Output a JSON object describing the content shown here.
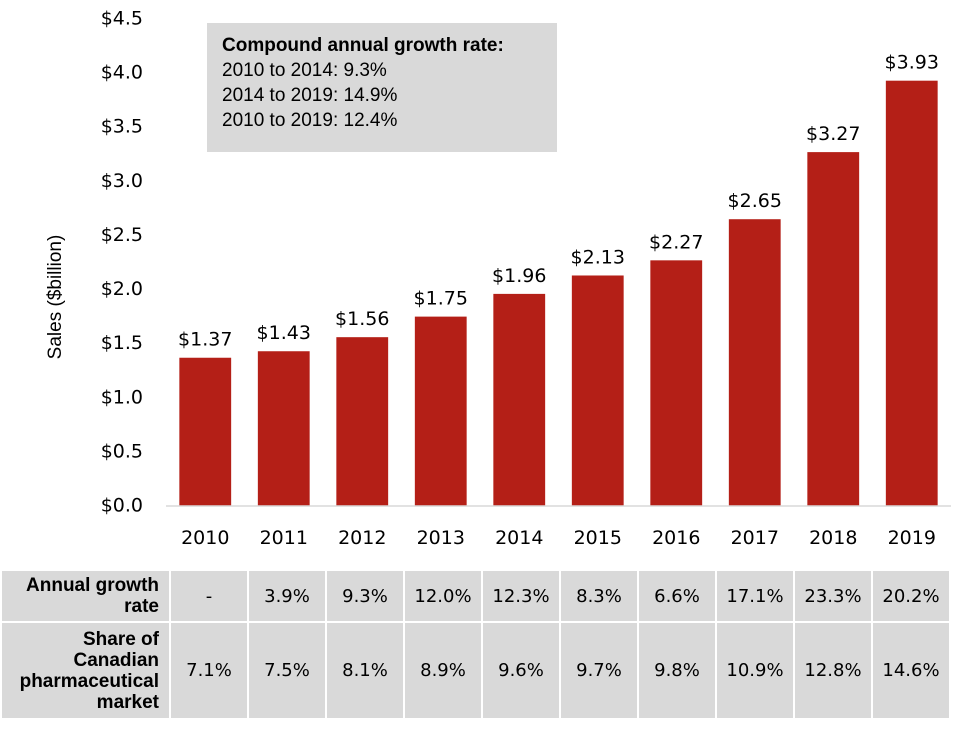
{
  "chart_data": {
    "type": "bar",
    "title": "",
    "xlabel": "",
    "ylabel": "Sales ($billion)",
    "ylim": [
      0,
      4.5
    ],
    "yticks": [
      0.0,
      0.5,
      1.0,
      1.5,
      2.0,
      2.5,
      3.0,
      3.5,
      4.0,
      4.5
    ],
    "ytick_labels": [
      "$0.0",
      "$0.5",
      "$1.0",
      "$1.5",
      "$2.0",
      "$2.5",
      "$3.0",
      "$3.5",
      "$4.0",
      "$4.5"
    ],
    "categories": [
      "2010",
      "2011",
      "2012",
      "2013",
      "2014",
      "2015",
      "2016",
      "2017",
      "2018",
      "2019"
    ],
    "values": [
      1.37,
      1.43,
      1.56,
      1.75,
      1.96,
      2.13,
      2.27,
      2.65,
      3.27,
      3.93
    ],
    "data_labels": [
      "$1.37",
      "$1.43",
      "$1.56",
      "$1.75",
      "$1.96",
      "$2.13",
      "$2.27",
      "$2.65",
      "$3.27",
      "$3.93"
    ],
    "bar_color": "#b41f17",
    "grid": false,
    "legend": null,
    "annotations": [
      {
        "title": "Compound annual growth rate:",
        "lines": [
          "2010 to 2014: 9.3%",
          "2014 to 2019: 14.9%",
          "2010 to 2019: 12.4%"
        ]
      }
    ]
  },
  "cagr_box": {
    "title": "Compound annual growth rate:",
    "lines": [
      "2010 to 2014: 9.3%",
      "2014 to 2019: 14.9%",
      "2010 to 2019: 12.4%"
    ]
  },
  "table": {
    "rows": [
      {
        "header_lines": [
          "Annual growth",
          "rate"
        ],
        "values": [
          "-",
          "3.9%",
          "9.3%",
          "12.0%",
          "12.3%",
          "8.3%",
          "6.6%",
          "17.1%",
          "23.3%",
          "20.2%"
        ]
      },
      {
        "header_lines": [
          "Share of",
          "Canadian",
          "pharmaceutical",
          "market"
        ],
        "values": [
          "7.1%",
          "7.5%",
          "8.1%",
          "8.9%",
          "9.6%",
          "9.7%",
          "9.8%",
          "10.9%",
          "12.8%",
          "14.6%"
        ]
      }
    ]
  }
}
